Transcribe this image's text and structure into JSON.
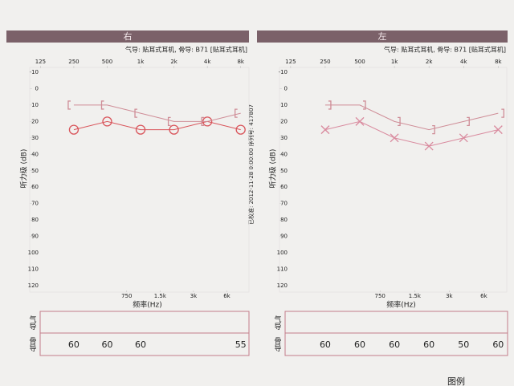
{
  "calibration": "已校准: 2012-11-28 0:00:00 序列号: 417807",
  "legend_title": "图例",
  "chart_data": [
    {
      "type": "line",
      "title": "右",
      "subtitle": "气导: 贴耳式耳机, 骨导: B71 [贴耳式耳机]",
      "y_label": "听力级 (dB)",
      "x_label": "频率(Hz)",
      "log_x": true,
      "y_reversed": true,
      "xlim": [
        100,
        9500
      ],
      "ylim": [
        -10,
        120
      ],
      "xticks": [
        125,
        250,
        500,
        {
          "value": 1000,
          "label": "1k"
        },
        {
          "value": 2000,
          "label": "2k"
        },
        {
          "value": 4000,
          "label": "4k"
        },
        {
          "value": 8000,
          "label": "8k"
        }
      ],
      "xticks_bottom": [
        750,
        {
          "value": 1500,
          "label": "1.5k"
        },
        {
          "value": 3000,
          "label": "3k"
        },
        {
          "value": 6000,
          "label": "6k"
        }
      ],
      "yticks": [
        -10,
        0,
        10,
        20,
        30,
        40,
        50,
        60,
        70,
        80,
        90,
        100,
        110,
        120
      ],
      "series": [
        {
          "marker": "o",
          "color": "#d9545a",
          "x": [
            250,
            500,
            1000,
            2000,
            4000,
            8000
          ],
          "values": [
            25,
            20,
            25,
            25,
            20,
            25
          ]
        },
        {
          "marker": "[",
          "color": "#cf8d97",
          "x": [
            250,
            500,
            1000,
            2000,
            4000,
            8000
          ],
          "values": [
            10,
            10,
            15,
            20,
            20,
            15
          ]
        }
      ],
      "table": {
        "row_labels": [
          "气导",
          "骨导"
        ],
        "x": [
          250,
          500,
          1000,
          2000,
          4000,
          8000
        ],
        "bone_masking": [
          60,
          60,
          60,
          null,
          null,
          55
        ]
      }
    },
    {
      "type": "line",
      "title": "左",
      "subtitle": "气导: 贴耳式耳机, 骨导: B71 [贴耳式耳机]",
      "y_label": "听力级 (dB)",
      "x_label": "频率(Hz)",
      "log_x": true,
      "y_reversed": true,
      "xlim": [
        100,
        9500
      ],
      "ylim": [
        -10,
        120
      ],
      "xticks": [
        125,
        250,
        500,
        {
          "value": 1000,
          "label": "1k"
        },
        {
          "value": 2000,
          "label": "2k"
        },
        {
          "value": 4000,
          "label": "4k"
        },
        {
          "value": 8000,
          "label": "8k"
        }
      ],
      "xticks_bottom": [
        750,
        {
          "value": 1500,
          "label": "1.5k"
        },
        {
          "value": 3000,
          "label": "3k"
        },
        {
          "value": 6000,
          "label": "6k"
        }
      ],
      "yticks": [
        -10,
        0,
        10,
        20,
        30,
        40,
        50,
        60,
        70,
        80,
        90,
        100,
        110,
        120
      ],
      "series": [
        {
          "marker": "x",
          "color": "#d98a9e",
          "x": [
            250,
            500,
            1000,
            2000,
            4000,
            8000
          ],
          "values": [
            25,
            20,
            30,
            35,
            30,
            25
          ]
        },
        {
          "marker": "]",
          "color": "#cf8d97",
          "x": [
            250,
            500,
            1000,
            2000,
            4000,
            8000
          ],
          "values": [
            10,
            10,
            20,
            25,
            20,
            15
          ]
        }
      ],
      "table": {
        "row_labels": [
          "气导",
          "骨导"
        ],
        "x": [
          250,
          500,
          1000,
          2000,
          4000,
          8000
        ],
        "bone_masking": [
          60,
          60,
          60,
          60,
          50,
          60
        ]
      }
    }
  ]
}
